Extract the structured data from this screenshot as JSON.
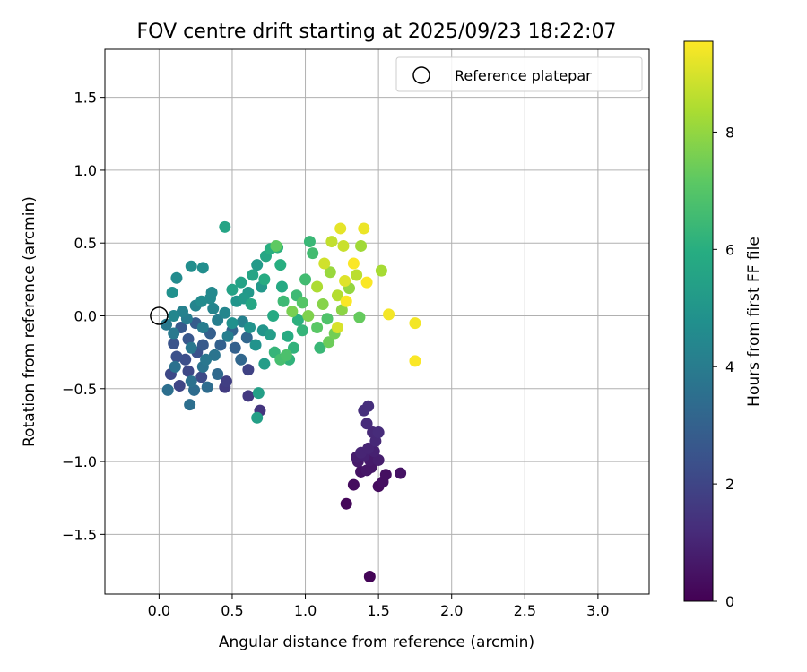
{
  "chart_data": {
    "type": "scatter",
    "title": "FOV centre drift starting at 2025/09/23 18:22:07",
    "xlabel": "Angular distance from reference (arcmin)",
    "ylabel": "Rotation from reference (arcmin)",
    "xlim": [
      -0.37,
      3.35
    ],
    "ylim": [
      -1.91,
      1.83
    ],
    "xticks": [
      0.0,
      0.5,
      1.0,
      1.5,
      2.0,
      2.5,
      3.0
    ],
    "xtick_labels": [
      "0.0",
      "0.5",
      "1.0",
      "1.5",
      "2.0",
      "2.5",
      "3.0"
    ],
    "yticks": [
      -1.5,
      -1.0,
      -0.5,
      0.0,
      0.5,
      1.0,
      1.5
    ],
    "ytick_labels": [
      "−1.5",
      "−1.0",
      "−0.5",
      "0.0",
      "0.5",
      "1.0",
      "1.5"
    ],
    "grid": true,
    "legend": {
      "position": "top-right",
      "label": "Reference platepar",
      "marker": "open-circle"
    },
    "reference_point": {
      "x": 0.0,
      "y": 0.0
    },
    "colorbar": {
      "label": "Hours from first FF file",
      "colormap": "viridis",
      "range": [
        0,
        9.55
      ],
      "ticks": [
        0,
        2,
        4,
        6,
        8
      ],
      "tick_labels": [
        "0",
        "2",
        "4",
        "6",
        "8"
      ]
    },
    "series": [
      {
        "name": "FOV centre",
        "points": [
          {
            "x": 1.44,
            "y": -1.79,
            "t": 0.1
          },
          {
            "x": 1.28,
            "y": -1.29,
            "t": 0.2
          },
          {
            "x": 1.33,
            "y": -1.16,
            "t": 0.3
          },
          {
            "x": 1.5,
            "y": -1.17,
            "t": 0.3
          },
          {
            "x": 1.53,
            "y": -1.14,
            "t": 0.4
          },
          {
            "x": 1.55,
            "y": -1.09,
            "t": 0.4
          },
          {
            "x": 1.65,
            "y": -1.08,
            "t": 0.5
          },
          {
            "x": 1.38,
            "y": -1.07,
            "t": 0.5
          },
          {
            "x": 1.42,
            "y": -1.06,
            "t": 0.6
          },
          {
            "x": 1.45,
            "y": -1.04,
            "t": 0.6
          },
          {
            "x": 1.36,
            "y": -1.0,
            "t": 0.7
          },
          {
            "x": 1.44,
            "y": -0.99,
            "t": 0.7
          },
          {
            "x": 1.5,
            "y": -0.99,
            "t": 0.8
          },
          {
            "x": 1.35,
            "y": -0.97,
            "t": 0.8
          },
          {
            "x": 1.4,
            "y": -0.96,
            "t": 0.9
          },
          {
            "x": 1.47,
            "y": -0.93,
            "t": 0.9
          },
          {
            "x": 1.38,
            "y": -0.94,
            "t": 1.0
          },
          {
            "x": 1.43,
            "y": -0.91,
            "t": 1.0
          },
          {
            "x": 1.48,
            "y": -0.86,
            "t": 1.1
          },
          {
            "x": 1.46,
            "y": -0.8,
            "t": 1.1
          },
          {
            "x": 1.5,
            "y": -0.8,
            "t": 1.2
          },
          {
            "x": 1.42,
            "y": -0.74,
            "t": 1.2
          },
          {
            "x": 1.4,
            "y": -0.65,
            "t": 1.3
          },
          {
            "x": 1.43,
            "y": -0.62,
            "t": 1.3
          },
          {
            "x": 0.69,
            "y": -0.65,
            "t": 1.5
          },
          {
            "x": 0.61,
            "y": -0.55,
            "t": 1.6
          },
          {
            "x": 0.45,
            "y": -0.49,
            "t": 1.7
          },
          {
            "x": 0.46,
            "y": -0.45,
            "t": 1.8
          },
          {
            "x": 0.61,
            "y": -0.37,
            "t": 1.9
          },
          {
            "x": 0.14,
            "y": -0.48,
            "t": 2.0
          },
          {
            "x": 0.08,
            "y": -0.4,
            "t": 2.1
          },
          {
            "x": 0.2,
            "y": -0.38,
            "t": 2.1
          },
          {
            "x": 0.29,
            "y": -0.42,
            "t": 2.2
          },
          {
            "x": 0.18,
            "y": -0.3,
            "t": 2.3
          },
          {
            "x": 0.12,
            "y": -0.28,
            "t": 2.4
          },
          {
            "x": 0.26,
            "y": -0.25,
            "t": 2.4
          },
          {
            "x": 0.1,
            "y": -0.19,
            "t": 2.5
          },
          {
            "x": 0.2,
            "y": -0.16,
            "t": 2.6
          },
          {
            "x": 0.3,
            "y": -0.2,
            "t": 2.7
          },
          {
            "x": 0.15,
            "y": -0.08,
            "t": 2.7
          },
          {
            "x": 0.25,
            "y": -0.05,
            "t": 2.8
          },
          {
            "x": 0.35,
            "y": -0.12,
            "t": 2.9
          },
          {
            "x": 0.42,
            "y": -0.2,
            "t": 3.0
          },
          {
            "x": 0.52,
            "y": -0.22,
            "t": 3.0
          },
          {
            "x": 0.5,
            "y": -0.1,
            "t": 3.1
          },
          {
            "x": 0.6,
            "y": -0.15,
            "t": 3.2
          },
          {
            "x": 0.56,
            "y": -0.3,
            "t": 3.2
          },
          {
            "x": 0.4,
            "y": -0.4,
            "t": 3.3
          },
          {
            "x": 0.33,
            "y": -0.49,
            "t": 3.4
          },
          {
            "x": 0.24,
            "y": -0.51,
            "t": 3.4
          },
          {
            "x": 0.21,
            "y": -0.61,
            "t": 3.5
          },
          {
            "x": 0.06,
            "y": -0.51,
            "t": 3.5
          },
          {
            "x": 0.11,
            "y": -0.35,
            "t": 3.6
          },
          {
            "x": 0.22,
            "y": -0.45,
            "t": 3.6
          },
          {
            "x": 0.3,
            "y": -0.35,
            "t": 3.7
          },
          {
            "x": 0.38,
            "y": -0.27,
            "t": 3.7
          },
          {
            "x": 0.22,
            "y": -0.22,
            "t": 3.8
          },
          {
            "x": 0.32,
            "y": -0.3,
            "t": 3.8
          },
          {
            "x": 0.1,
            "y": -0.12,
            "t": 3.9
          },
          {
            "x": 0.05,
            "y": -0.06,
            "t": 3.9
          },
          {
            "x": 0.19,
            "y": -0.02,
            "t": 4.0
          },
          {
            "x": 0.3,
            "y": -0.08,
            "t": 4.0
          },
          {
            "x": 0.4,
            "y": -0.03,
            "t": 4.1
          },
          {
            "x": 0.47,
            "y": -0.14,
            "t": 4.1
          },
          {
            "x": 0.57,
            "y": -0.04,
            "t": 4.2
          },
          {
            "x": 0.16,
            "y": 0.03,
            "t": 4.2
          },
          {
            "x": 0.25,
            "y": 0.07,
            "t": 4.3
          },
          {
            "x": 0.37,
            "y": 0.05,
            "t": 4.3
          },
          {
            "x": 0.45,
            "y": 0.02,
            "t": 4.4
          },
          {
            "x": 0.1,
            "y": 0.0,
            "t": 4.4
          },
          {
            "x": 0.35,
            "y": 0.12,
            "t": 4.5
          },
          {
            "x": 0.36,
            "y": 0.16,
            "t": 4.5
          },
          {
            "x": 0.29,
            "y": 0.1,
            "t": 4.6
          },
          {
            "x": 0.12,
            "y": 0.26,
            "t": 4.6
          },
          {
            "x": 0.22,
            "y": 0.34,
            "t": 4.7
          },
          {
            "x": 0.3,
            "y": 0.33,
            "t": 4.7
          },
          {
            "x": 0.09,
            "y": 0.16,
            "t": 4.8
          },
          {
            "x": 0.5,
            "y": -0.05,
            "t": 4.8
          },
          {
            "x": 0.62,
            "y": -0.08,
            "t": 4.9
          },
          {
            "x": 0.66,
            "y": -0.2,
            "t": 4.9
          },
          {
            "x": 0.71,
            "y": -0.1,
            "t": 5.0
          },
          {
            "x": 0.53,
            "y": 0.1,
            "t": 5.0
          },
          {
            "x": 0.61,
            "y": 0.16,
            "t": 5.1
          },
          {
            "x": 0.7,
            "y": 0.2,
            "t": 5.1
          },
          {
            "x": 0.67,
            "y": 0.35,
            "t": 5.2
          },
          {
            "x": 0.58,
            "y": 0.12,
            "t": 5.2
          },
          {
            "x": 0.76,
            "y": -0.13,
            "t": 5.3
          },
          {
            "x": 0.72,
            "y": -0.33,
            "t": 5.3
          },
          {
            "x": 0.68,
            "y": -0.53,
            "t": 5.4
          },
          {
            "x": 0.67,
            "y": -0.7,
            "t": 5.4
          },
          {
            "x": 0.5,
            "y": 0.18,
            "t": 5.5
          },
          {
            "x": 0.56,
            "y": 0.23,
            "t": 5.5
          },
          {
            "x": 0.45,
            "y": 0.61,
            "t": 5.6
          },
          {
            "x": 0.64,
            "y": 0.28,
            "t": 5.6
          },
          {
            "x": 0.73,
            "y": 0.41,
            "t": 5.7
          },
          {
            "x": 0.63,
            "y": 0.08,
            "t": 5.7
          },
          {
            "x": 0.78,
            "y": 0.0,
            "t": 5.8
          },
          {
            "x": 0.84,
            "y": 0.2,
            "t": 5.8
          },
          {
            "x": 0.88,
            "y": -0.14,
            "t": 5.9
          },
          {
            "x": 0.72,
            "y": 0.25,
            "t": 5.9
          },
          {
            "x": 0.83,
            "y": 0.35,
            "t": 6.0
          },
          {
            "x": 0.76,
            "y": 0.46,
            "t": 6.0
          },
          {
            "x": 0.81,
            "y": 0.47,
            "t": 6.1
          },
          {
            "x": 0.95,
            "y": -0.03,
            "t": 6.1
          },
          {
            "x": 0.89,
            "y": -0.3,
            "t": 6.2
          },
          {
            "x": 0.92,
            "y": -0.22,
            "t": 6.2
          },
          {
            "x": 0.79,
            "y": -0.25,
            "t": 6.3
          },
          {
            "x": 0.98,
            "y": -0.1,
            "t": 6.3
          },
          {
            "x": 1.03,
            "y": 0.51,
            "t": 6.4
          },
          {
            "x": 1.1,
            "y": -0.22,
            "t": 6.4
          },
          {
            "x": 0.85,
            "y": 0.1,
            "t": 6.5
          },
          {
            "x": 0.94,
            "y": 0.14,
            "t": 6.5
          },
          {
            "x": 1.0,
            "y": 0.25,
            "t": 6.6
          },
          {
            "x": 1.05,
            "y": 0.43,
            "t": 6.6
          },
          {
            "x": 0.83,
            "y": -0.3,
            "t": 6.7
          },
          {
            "x": 0.87,
            "y": -0.27,
            "t": 6.8
          },
          {
            "x": 1.15,
            "y": -0.02,
            "t": 6.9
          },
          {
            "x": 0.98,
            "y": 0.09,
            "t": 7.0
          },
          {
            "x": 1.08,
            "y": -0.08,
            "t": 7.1
          },
          {
            "x": 0.8,
            "y": 0.48,
            "t": 7.2
          },
          {
            "x": 1.37,
            "y": -0.01,
            "t": 7.3
          },
          {
            "x": 1.16,
            "y": -0.18,
            "t": 7.4
          },
          {
            "x": 1.2,
            "y": -0.12,
            "t": 7.5
          },
          {
            "x": 0.91,
            "y": 0.03,
            "t": 7.6
          },
          {
            "x": 1.02,
            "y": 0.0,
            "t": 7.7
          },
          {
            "x": 1.12,
            "y": 0.08,
            "t": 7.8
          },
          {
            "x": 1.25,
            "y": 0.04,
            "t": 7.9
          },
          {
            "x": 1.3,
            "y": 0.19,
            "t": 8.0
          },
          {
            "x": 1.17,
            "y": 0.3,
            "t": 8.1
          },
          {
            "x": 1.38,
            "y": 0.48,
            "t": 8.2
          },
          {
            "x": 1.52,
            "y": 0.31,
            "t": 8.3
          },
          {
            "x": 1.08,
            "y": 0.2,
            "t": 8.4
          },
          {
            "x": 1.22,
            "y": 0.14,
            "t": 8.5
          },
          {
            "x": 1.35,
            "y": 0.28,
            "t": 8.6
          },
          {
            "x": 1.18,
            "y": 0.51,
            "t": 8.7
          },
          {
            "x": 1.26,
            "y": 0.48,
            "t": 8.8
          },
          {
            "x": 1.13,
            "y": 0.36,
            "t": 8.9
          },
          {
            "x": 1.22,
            "y": -0.08,
            "t": 9.0
          },
          {
            "x": 1.27,
            "y": 0.24,
            "t": 9.1
          },
          {
            "x": 1.24,
            "y": 0.6,
            "t": 9.2
          },
          {
            "x": 1.4,
            "y": 0.6,
            "t": 9.3
          },
          {
            "x": 1.57,
            "y": 0.01,
            "t": 9.4
          },
          {
            "x": 1.75,
            "y": -0.05,
            "t": 9.4
          },
          {
            "x": 1.75,
            "y": -0.31,
            "t": 9.5
          },
          {
            "x": 1.28,
            "y": 0.1,
            "t": 9.5
          },
          {
            "x": 1.33,
            "y": 0.36,
            "t": 9.5
          },
          {
            "x": 1.42,
            "y": 0.23,
            "t": 9.5
          }
        ]
      }
    ]
  }
}
